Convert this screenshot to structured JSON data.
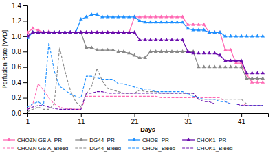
{
  "chart_data": {
    "type": "line",
    "xlabel": "Days",
    "ylabel": "Perfusion Rate [VVD]",
    "xlim": [
      1,
      46
    ],
    "ylim": [
      0.0,
      1.4
    ],
    "xticks": [
      1,
      11,
      21,
      31,
      41
    ],
    "yticks": [
      {
        "value": 0.0,
        "label": "0.0"
      },
      0.2,
      0.4,
      0.6,
      0.8,
      {
        "value": 1.0,
        "label": "1.0"
      },
      1.2,
      1.4
    ],
    "legend": "bottom",
    "x": [
      1,
      2,
      3,
      4,
      5,
      6,
      7,
      8,
      9,
      10,
      11,
      12,
      13,
      14,
      15,
      16,
      17,
      18,
      19,
      20,
      21,
      22,
      23,
      24,
      25,
      26,
      27,
      28,
      29,
      30,
      31,
      32,
      33,
      34,
      35,
      36,
      37,
      38,
      39,
      40,
      41,
      42,
      43,
      44,
      45
    ],
    "series": [
      {
        "name": "CHOZN GS A_PR",
        "color": "#FF69B4",
        "marker": "triangle",
        "line_style": "solid",
        "values": [
          1.05,
          1.1,
          1.08,
          1.05,
          1.06,
          1.05,
          1.05,
          1.05,
          1.05,
          1.05,
          1.05,
          1.05,
          1.05,
          1.05,
          1.05,
          1.05,
          1.05,
          1.05,
          1.05,
          1.05,
          1.25,
          1.25,
          1.25,
          1.25,
          1.25,
          1.25,
          1.25,
          1.25,
          1.25,
          1.25,
          1.15,
          1.15,
          1.15,
          1.15,
          1.05,
          1.05,
          1.05,
          0.82,
          0.82,
          0.65,
          0.65,
          0.5,
          0.4,
          0.4,
          0.4
        ]
      },
      {
        "name": "CHOZN GS A_Bleed",
        "color": "#FF69B4",
        "line_style": "dashed",
        "values": [
          0.05,
          0.12,
          0.38,
          0.3,
          0.2,
          0.12,
          0.08,
          0.06,
          0.06,
          0.05,
          0.05,
          0.22,
          0.22,
          0.22,
          0.22,
          0.22,
          0.22,
          0.22,
          0.22,
          0.22,
          0.22,
          0.22,
          0.22,
          0.22,
          0.22,
          0.2,
          0.2,
          0.2,
          0.2,
          0.2,
          0.2,
          0.2,
          0.2,
          0.2,
          0.2,
          0.2,
          0.2,
          0.15,
          0.12,
          0.12,
          0.12,
          0.1,
          0.1,
          0.1,
          0.1
        ]
      },
      {
        "name": "DG44_PR",
        "color": "#888888",
        "marker": "triangle",
        "line_style": "solid",
        "values": [
          1.0,
          1.05,
          1.05,
          1.05,
          1.05,
          1.05,
          1.05,
          1.05,
          1.05,
          1.05,
          1.05,
          0.85,
          0.85,
          0.82,
          0.82,
          0.82,
          0.82,
          0.8,
          0.8,
          0.78,
          0.75,
          0.72,
          0.72,
          0.8,
          0.8,
          0.8,
          0.8,
          0.8,
          0.8,
          0.8,
          0.8,
          0.8,
          0.6,
          0.6,
          0.6,
          0.6,
          0.6,
          0.6,
          0.6,
          0.6,
          0.6,
          0.45,
          0.45,
          0.45,
          0.45
        ]
      },
      {
        "name": "DG44_Bleed",
        "color": "#888888",
        "line_style": "dashed",
        "values": [
          0.02,
          0.05,
          0.08,
          0.05,
          0.05,
          0.12,
          0.85,
          0.55,
          0.3,
          0.15,
          0.08,
          0.25,
          0.35,
          0.58,
          0.42,
          0.32,
          0.3,
          0.28,
          0.26,
          0.26,
          0.26,
          0.3,
          0.28,
          0.28,
          0.28,
          0.26,
          0.26,
          0.26,
          0.26,
          0.26,
          0.26,
          0.26,
          0.18,
          0.18,
          0.18,
          0.18,
          0.18,
          0.18,
          0.18,
          0.18,
          0.18,
          0.12,
          0.12,
          0.12,
          0.12
        ]
      },
      {
        "name": "CHOS_PR",
        "color": "#1E90FF",
        "marker": "triangle",
        "line_style": "solid",
        "values": [
          0.98,
          1.05,
          1.05,
          1.05,
          1.05,
          1.05,
          1.05,
          1.05,
          1.05,
          1.05,
          1.22,
          1.25,
          1.28,
          1.28,
          1.25,
          1.25,
          1.25,
          1.25,
          1.25,
          1.25,
          1.25,
          1.2,
          1.18,
          1.18,
          1.18,
          1.18,
          1.18,
          1.18,
          1.18,
          1.18,
          1.1,
          1.08,
          1.08,
          1.08,
          1.05,
          1.05,
          1.05,
          1.0,
          1.0,
          1.0,
          1.0,
          1.0,
          1.0,
          1.0,
          1.0
        ]
      },
      {
        "name": "CHOS_Bleed",
        "color": "#1E90FF",
        "line_style": "dashed",
        "values": [
          0.08,
          0.12,
          0.15,
          0.1,
          0.92,
          0.55,
          0.35,
          0.3,
          0.25,
          0.22,
          0.2,
          0.48,
          0.48,
          0.46,
          0.44,
          0.44,
          0.44,
          0.38,
          0.38,
          0.36,
          0.34,
          0.32,
          0.3,
          0.3,
          0.28,
          0.28,
          0.28,
          0.28,
          0.28,
          0.28,
          0.25,
          0.22,
          0.2,
          0.18,
          0.18,
          0.18,
          0.15,
          0.15,
          0.12,
          0.12,
          0.1,
          0.1,
          0.1,
          0.1,
          0.1
        ]
      },
      {
        "name": "CHOK1_PR",
        "color": "#6A0DAD",
        "marker": "triangle",
        "line_style": "solid",
        "values": [
          1.0,
          1.05,
          1.05,
          1.05,
          1.05,
          1.05,
          1.05,
          1.05,
          1.05,
          1.05,
          1.05,
          1.05,
          1.05,
          1.05,
          1.05,
          1.05,
          1.05,
          1.05,
          1.05,
          1.05,
          1.05,
          0.95,
          0.95,
          0.95,
          0.95,
          0.95,
          0.95,
          0.95,
          0.95,
          0.95,
          0.8,
          0.78,
          0.78,
          0.78,
          0.78,
          0.78,
          0.75,
          0.68,
          0.68,
          0.68,
          0.68,
          0.52,
          0.52,
          0.52,
          0.52
        ]
      },
      {
        "name": "CHOK1_Bleed",
        "color": "#6A0DAD",
        "line_style": "dashed",
        "values": [
          0.05,
          0.08,
          0.1,
          0.1,
          0.08,
          0.06,
          0.05,
          0.05,
          0.05,
          0.05,
          0.05,
          0.26,
          0.26,
          0.28,
          0.28,
          0.26,
          0.26,
          0.26,
          0.26,
          0.26,
          0.26,
          0.26,
          0.26,
          0.26,
          0.26,
          0.26,
          0.26,
          0.26,
          0.26,
          0.26,
          0.26,
          0.26,
          0.18,
          0.15,
          0.15,
          0.12,
          0.12,
          0.12,
          0.12,
          0.12,
          0.1,
          0.1,
          0.1,
          0.1,
          0.1
        ]
      }
    ]
  }
}
